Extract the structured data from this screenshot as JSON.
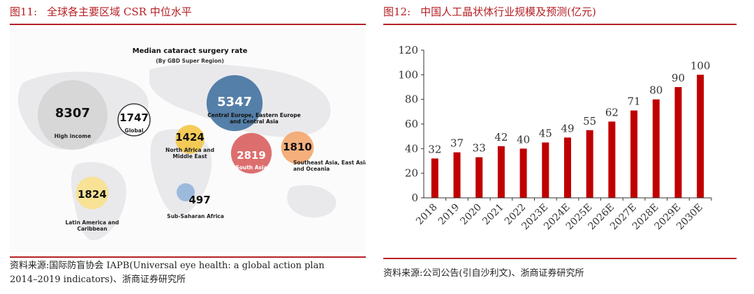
{
  "left": {
    "figure_number": "图11:",
    "figure_title": "全球各主要区域 CSR 中位水平",
    "source_line1": "资料来源:国际防盲协会 IAPB(Universal eye health: a global action plan",
    "source_line2": "2014–2019 indicators)、浙商证券研究所"
  },
  "right": {
    "figure_number": "图12:",
    "figure_title": "中国人工晶状体行业规模及预测(亿元)",
    "source": "资料来源:公司公告(引自沙利文)、浙商证券研究所"
  },
  "chart_data": [
    {
      "type": "bubble-map",
      "title": "Median cataract surgery rate",
      "subtitle": "(By GBD Super Region)",
      "bubbles": [
        {
          "label": "High income",
          "value": 8307,
          "color": "#d4d4d4"
        },
        {
          "label": "Global",
          "value": 1747,
          "color": "#ffffff"
        },
        {
          "label": "Central Europe, Eastern Europe and Central Asia",
          "value": 5347,
          "color": "#3f6f9e"
        },
        {
          "label": "North Africa and Middle East",
          "value": 1424,
          "color": "#f5c542"
        },
        {
          "label": "South Asia",
          "value": 2819,
          "color": "#d85a5a"
        },
        {
          "label": "Southeast Asia, East Asia and Oceania",
          "value": 1810,
          "color": "#f4a46a"
        },
        {
          "label": "Latin America and Caribbean",
          "value": 1824,
          "color": "#f8e08a"
        },
        {
          "label": "Sub-Saharan Africa",
          "value": 497,
          "color": "#8fb3d9"
        }
      ]
    },
    {
      "type": "bar",
      "categories": [
        "2018",
        "2019",
        "2020",
        "2021",
        "2022",
        "2023E",
        "2024E",
        "2025E",
        "2026E",
        "2027E",
        "2028E",
        "2029E",
        "2030E"
      ],
      "values": [
        32,
        37,
        33,
        42,
        40,
        45,
        49,
        55,
        62,
        71,
        80,
        90,
        100
      ],
      "ylim": [
        0,
        120
      ],
      "yticks": [
        0,
        20,
        40,
        60,
        80,
        100,
        120
      ],
      "bar_color": "#c00000",
      "grid": false
    }
  ]
}
